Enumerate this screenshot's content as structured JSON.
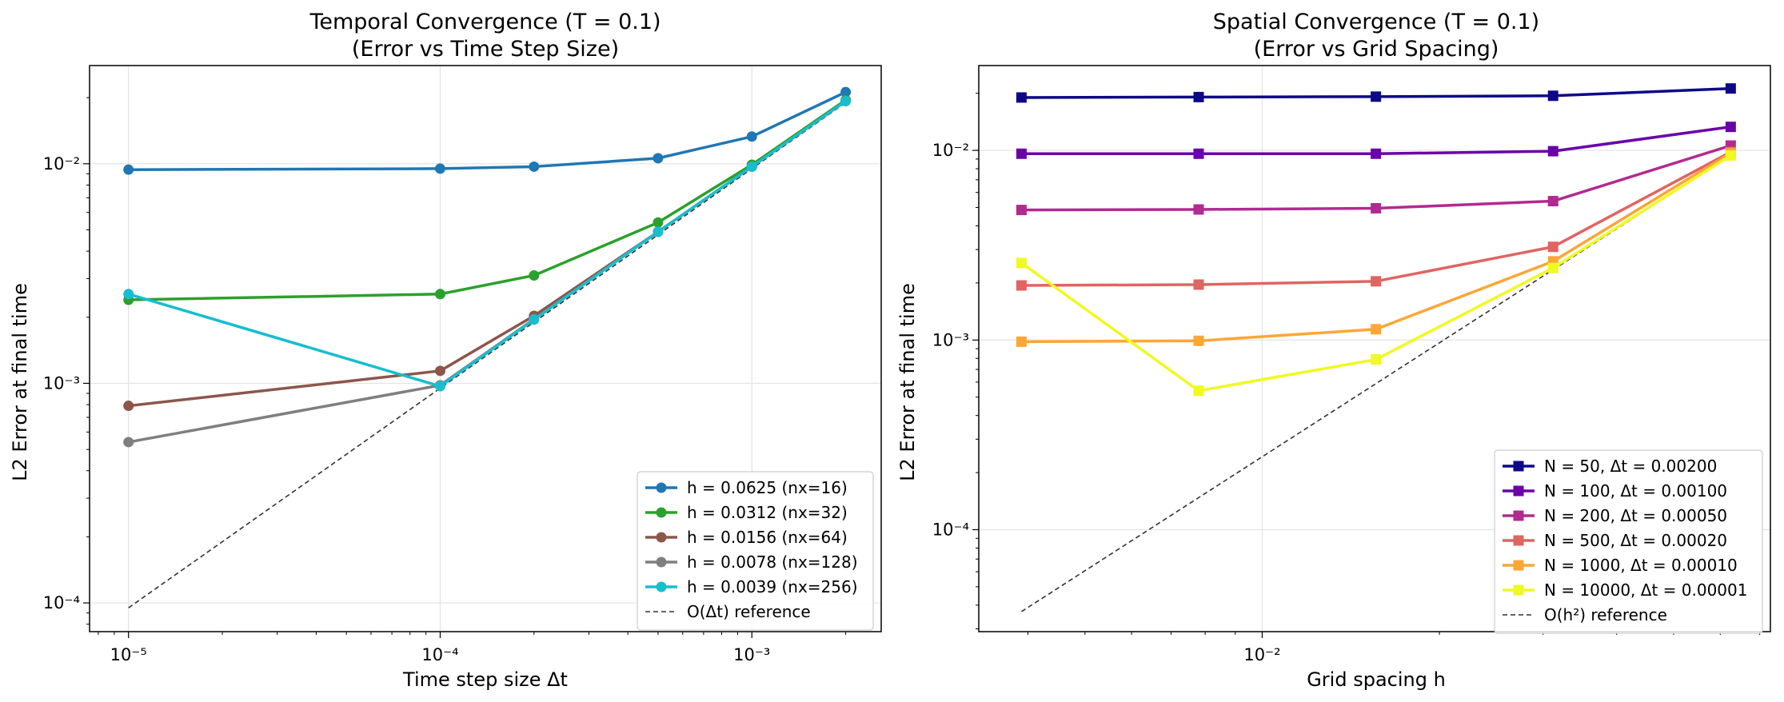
{
  "chart_data": [
    {
      "type": "line",
      "title": "Temporal Convergence (T = 0.1)",
      "subtitle": "(Error vs Time Step Size)",
      "xlabel": "Time step size Δt",
      "ylabel": "L2 Error at final time",
      "xscale": "log",
      "yscale": "log",
      "xlim": [
        7.5e-06,
        0.0026
      ],
      "ylim": [
        7.4e-05,
        0.028
      ],
      "xticks": [
        {
          "value": 1e-05,
          "label": "10⁻⁵"
        },
        {
          "value": 0.0001,
          "label": "10⁻⁴"
        },
        {
          "value": 0.001,
          "label": "10⁻³"
        }
      ],
      "yticks": [
        {
          "value": 0.0001,
          "label": "10⁻⁴"
        },
        {
          "value": 0.001,
          "label": "10⁻³"
        },
        {
          "value": 0.01,
          "label": "10⁻²"
        }
      ],
      "grid": true,
      "legend_position": "bottom-right",
      "marker": "circle",
      "series": [
        {
          "name": "h = 0.0625 (nx=16)",
          "color": "#1f77b4",
          "x": [
            1e-05,
            0.0001,
            0.0002,
            0.0005,
            0.001,
            0.002
          ],
          "y": [
            0.0094,
            0.0095,
            0.0097,
            0.0106,
            0.0133,
            0.0212
          ]
        },
        {
          "name": "h = 0.0312 (nx=32)",
          "color": "#2ca02c",
          "x": [
            1e-05,
            0.0001,
            0.0002,
            0.0005,
            0.001,
            0.002
          ],
          "y": [
            0.0024,
            0.00255,
            0.0031,
            0.0054,
            0.0099,
            0.0195
          ]
        },
        {
          "name": "h = 0.0156 (nx=64)",
          "color": "#8c564b",
          "x": [
            1e-05,
            0.0001,
            0.0002,
            0.0005,
            0.001,
            0.002
          ],
          "y": [
            0.00079,
            0.00114,
            0.00203,
            0.0049,
            0.0097,
            0.0193
          ]
        },
        {
          "name": "h = 0.0078 (nx=128)",
          "color": "#7f7f7f",
          "x": [
            1e-05,
            0.0001,
            0.0002,
            0.0005,
            0.001,
            0.002
          ],
          "y": [
            0.00054,
            0.00098,
            0.00196,
            0.0049,
            0.0097,
            0.0193
          ]
        },
        {
          "name": "h = 0.0039 (nx=256)",
          "color": "#17becf",
          "x": [
            1e-05,
            0.0001,
            0.0002,
            0.0005,
            0.001,
            0.002
          ],
          "y": [
            0.00255,
            0.00097,
            0.00195,
            0.0049,
            0.0097,
            0.0193
          ]
        }
      ],
      "reference": {
        "name": "O(Δt) reference",
        "color": "#333333",
        "style": "dashed",
        "x": [
          1e-05,
          0.002
        ],
        "y": [
          9.5e-05,
          0.019
        ]
      }
    },
    {
      "type": "line",
      "title": "Spatial Convergence (T = 0.1)",
      "subtitle": "(Error vs Grid Spacing)",
      "xlabel": "Grid spacing h",
      "ylabel": "L2 Error at final time",
      "xscale": "log",
      "yscale": "log",
      "xlim": [
        0.0033,
        0.073
      ],
      "ylim": [
        2.9e-05,
        0.028
      ],
      "xticks": [
        {
          "value": 0.01,
          "label": "10⁻²"
        }
      ],
      "yticks": [
        {
          "value": 0.0001,
          "label": "10⁻⁴"
        },
        {
          "value": 0.001,
          "label": "10⁻³"
        },
        {
          "value": 0.01,
          "label": "10⁻²"
        }
      ],
      "grid": true,
      "legend_position": "bottom-right",
      "marker": "square",
      "series": [
        {
          "name": "N = 50, Δt = 0.00200",
          "color": "#0d0887",
          "x": [
            0.0039,
            0.0078,
            0.0156,
            0.0312,
            0.0625
          ],
          "y": [
            0.019,
            0.0191,
            0.0192,
            0.0194,
            0.0212
          ]
        },
        {
          "name": "N = 100, Δt = 0.00100",
          "color": "#6a00a8",
          "x": [
            0.0039,
            0.0078,
            0.0156,
            0.0312,
            0.0625
          ],
          "y": [
            0.0096,
            0.0096,
            0.0096,
            0.0099,
            0.0133
          ]
        },
        {
          "name": "N = 200, Δt = 0.00050",
          "color": "#b12a90",
          "x": [
            0.0039,
            0.0078,
            0.0156,
            0.0312,
            0.0625
          ],
          "y": [
            0.00485,
            0.00488,
            0.00495,
            0.0054,
            0.0106
          ]
        },
        {
          "name": "N = 500, Δt = 0.00020",
          "color": "#e16462",
          "x": [
            0.0039,
            0.0078,
            0.0156,
            0.0312,
            0.0625
          ],
          "y": [
            0.00194,
            0.00196,
            0.00204,
            0.0031,
            0.0098
          ]
        },
        {
          "name": "N = 1000, Δt = 0.00010",
          "color": "#fca636",
          "x": [
            0.0039,
            0.0078,
            0.0156,
            0.0312,
            0.0625
          ],
          "y": [
            0.00098,
            0.00099,
            0.00114,
            0.0026,
            0.0097
          ]
        },
        {
          "name": "N = 10000, Δt = 0.00001",
          "color": "#f0f921",
          "x": [
            0.0039,
            0.0078,
            0.0156,
            0.0312,
            0.0625
          ],
          "y": [
            0.00255,
            0.00054,
            0.00079,
            0.0024,
            0.0094
          ]
        }
      ],
      "reference": {
        "name": "O(h²) reference",
        "color": "#333333",
        "style": "dashed",
        "x": [
          0.0039,
          0.0625
        ],
        "y": [
          3.7e-05,
          0.0094
        ]
      }
    }
  ]
}
